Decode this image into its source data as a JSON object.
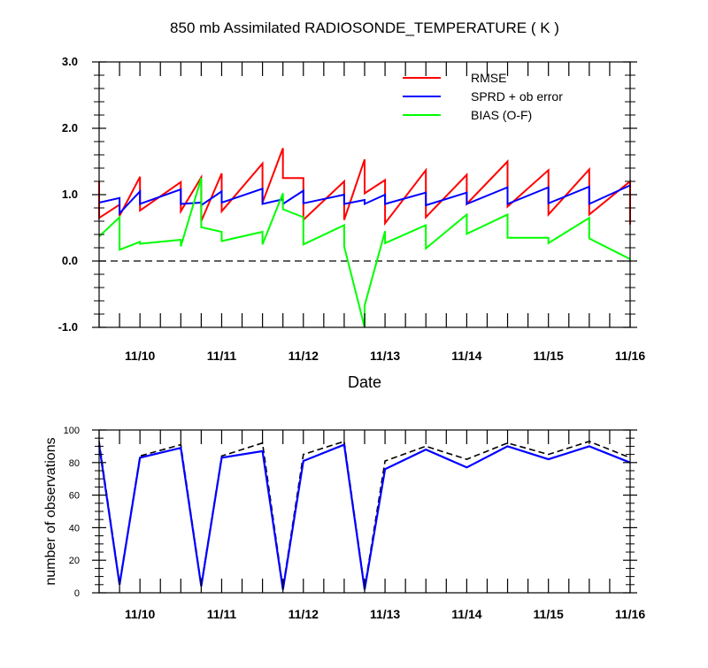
{
  "chart_data": [
    {
      "type": "line",
      "title": "850 mb Assimilated RADIOSONDE_TEMPERATURE ( K )",
      "xlabel": "Date",
      "ylabel": "",
      "x_ticks": [
        "11/10",
        "11/11",
        "11/12",
        "11/13",
        "11/14",
        "11/15",
        "11/16"
      ],
      "x_tick_days": [
        10,
        11,
        12,
        13,
        14,
        15,
        16
      ],
      "xlim_days": [
        9.5,
        16
      ],
      "ylim": [
        -1.0,
        3.0
      ],
      "y_ticks": [
        "-1.0",
        "0.0",
        "1.0",
        "2.0",
        "3.0"
      ],
      "y_tick_values": [
        -1.0,
        0.0,
        1.0,
        2.0,
        3.0
      ],
      "reference_line": {
        "y": 0.0,
        "style": "dashed",
        "color": "#000000"
      },
      "legend": {
        "placement": "top-right"
      },
      "series": [
        {
          "name": "RMSE",
          "color": "#ff0000",
          "x_days": [
            9.5,
            9.5,
            9.75,
            9.75,
            10.0,
            10.0,
            10.5,
            10.5,
            10.75,
            10.75,
            11.0,
            11.0,
            11.5,
            11.5,
            11.75,
            11.75,
            12.0,
            12.0,
            12.5,
            12.5,
            12.75,
            12.75,
            13.0,
            13.0,
            13.5,
            13.5,
            14.0,
            14.0,
            14.5,
            14.5,
            15.0,
            15.0,
            15.5,
            15.5,
            16.0,
            16.0
          ],
          "values": [
            1.2,
            0.65,
            0.85,
            0.68,
            1.27,
            0.76,
            1.19,
            0.75,
            1.26,
            0.6,
            1.32,
            0.75,
            1.47,
            0.88,
            1.7,
            1.25,
            1.25,
            0.62,
            1.2,
            0.62,
            1.53,
            1.02,
            1.22,
            0.57,
            1.37,
            0.66,
            1.3,
            0.86,
            1.5,
            0.82,
            1.37,
            0.7,
            1.38,
            0.7,
            1.2,
            0.55
          ]
        },
        {
          "name": "SPRD + ob error",
          "color": "#0000ff",
          "x_days": [
            9.5,
            9.75,
            9.75,
            10.0,
            10.0,
            10.5,
            10.5,
            10.75,
            10.75,
            11.0,
            11.0,
            11.5,
            11.5,
            11.75,
            11.75,
            12.0,
            12.0,
            12.5,
            12.5,
            12.75,
            12.75,
            13.0,
            13.0,
            13.5,
            13.5,
            14.0,
            14.0,
            14.5,
            14.5,
            15.0,
            15.0,
            15.5,
            15.5,
            16.0
          ],
          "values": [
            0.88,
            0.95,
            0.72,
            1.05,
            0.86,
            1.08,
            0.86,
            0.88,
            0.84,
            1.05,
            0.88,
            1.09,
            0.86,
            0.93,
            0.86,
            1.06,
            0.87,
            1.0,
            0.86,
            0.92,
            0.86,
            1.0,
            0.86,
            1.03,
            0.84,
            1.03,
            0.86,
            1.11,
            0.86,
            1.11,
            0.87,
            1.12,
            0.86,
            1.14
          ]
        },
        {
          "name": "BIAS (O-F)",
          "color": "#00ff00",
          "x_days": [
            9.5,
            9.75,
            9.75,
            10.0,
            10.0,
            10.5,
            10.5,
            10.75,
            10.75,
            11.0,
            11.0,
            11.5,
            11.5,
            11.75,
            11.75,
            12.0,
            12.0,
            12.5,
            12.5,
            12.75,
            12.75,
            13.0,
            13.0,
            13.5,
            13.5,
            14.0,
            14.0,
            14.5,
            14.5,
            15.0,
            15.0,
            15.5,
            15.5,
            16.0
          ],
          "values": [
            0.37,
            0.66,
            0.17,
            0.29,
            0.26,
            0.32,
            0.22,
            1.25,
            0.51,
            0.44,
            0.3,
            0.44,
            0.25,
            1.02,
            0.78,
            0.66,
            0.25,
            0.54,
            0.22,
            -1.0,
            -0.67,
            0.45,
            0.27,
            0.54,
            0.19,
            0.7,
            0.41,
            0.7,
            0.35,
            0.35,
            0.27,
            0.65,
            0.34,
            0.03
          ]
        }
      ]
    },
    {
      "type": "line",
      "title": "",
      "xlabel": "",
      "ylabel": "number of observations",
      "x_ticks": [
        "11/10",
        "11/11",
        "11/12",
        "11/13",
        "11/14",
        "11/15",
        "11/16"
      ],
      "x_tick_days": [
        10,
        11,
        12,
        13,
        14,
        15,
        16
      ],
      "xlim_days": [
        9.5,
        16
      ],
      "ylim": [
        0,
        100
      ],
      "y_ticks": [
        "0",
        "20",
        "40",
        "60",
        "80",
        "100"
      ],
      "y_tick_values": [
        0,
        20,
        40,
        60,
        80,
        100
      ],
      "series": [
        {
          "style": "dashed",
          "color": "#000000",
          "x_days": [
            9.5,
            9.75,
            10.0,
            10.5,
            10.75,
            11.0,
            11.5,
            11.75,
            12.0,
            12.5,
            12.75,
            13.0,
            13.5,
            14.0,
            14.5,
            15.0,
            15.5,
            16.0
          ],
          "values": [
            93,
            6,
            84,
            91,
            5,
            84,
            92,
            3,
            85,
            93,
            3,
            81,
            90,
            82,
            92,
            85,
            93,
            83
          ]
        },
        {
          "style": "solid",
          "color": "#0000ff",
          "x_days": [
            9.5,
            9.75,
            10.0,
            10.5,
            10.75,
            11.0,
            11.5,
            11.75,
            12.0,
            12.5,
            12.75,
            13.0,
            13.5,
            14.0,
            14.5,
            15.0,
            15.5,
            16.0
          ],
          "values": [
            91,
            5,
            83,
            89,
            4,
            83,
            87,
            2,
            81,
            91,
            2,
            76,
            88,
            77,
            90,
            82,
            90,
            80
          ]
        }
      ]
    }
  ]
}
